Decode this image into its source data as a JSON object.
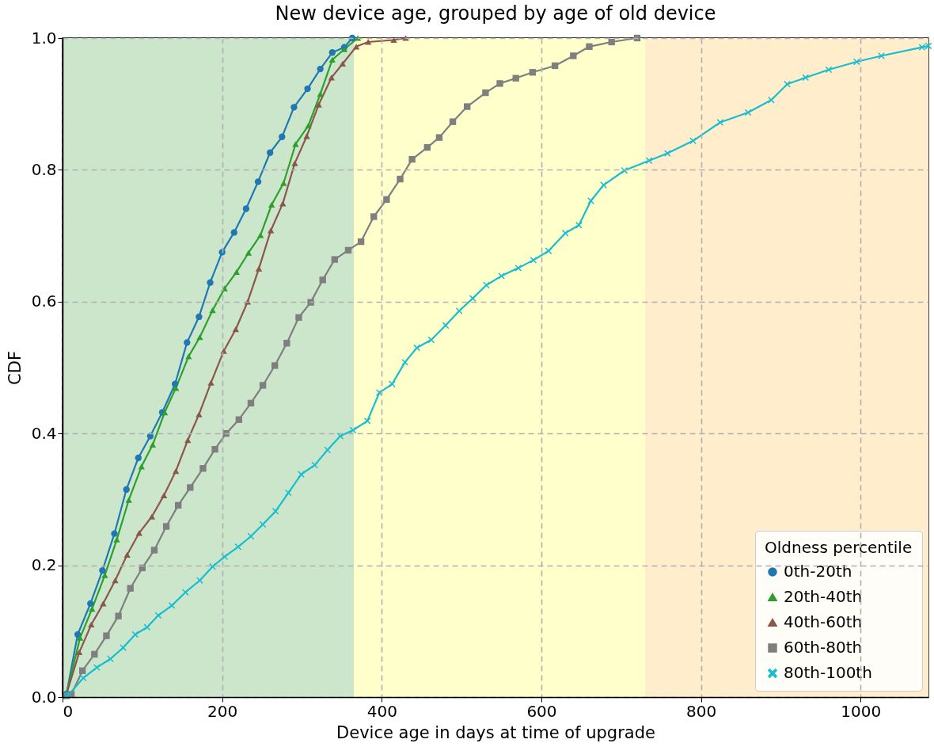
{
  "chart_data": {
    "type": "line",
    "title": "New device age, grouped by age of old device",
    "xlabel": "Device age in days at time of upgrade",
    "ylabel": "CDF",
    "legend_title": "Oldness percentile",
    "xlim": [
      0,
      1085
    ],
    "xticks": [
      0,
      200,
      400,
      600,
      800,
      1000
    ],
    "ylim": [
      0,
      1
    ],
    "yticks": [
      {
        "value": 0,
        "label": "0.0"
      },
      {
        "value": 0.2,
        "label": "0.2"
      },
      {
        "value": 0.4,
        "label": "0.4"
      },
      {
        "value": 0.6,
        "label": "0.6"
      },
      {
        "value": 0.8,
        "label": "0.8"
      },
      {
        "value": 1,
        "label": "1.0"
      }
    ],
    "grid": true,
    "legend": "bottom right",
    "bands": [
      {
        "axis": "x",
        "from": 0,
        "to": 365,
        "color": "#cce6cc"
      },
      {
        "axis": "x",
        "from": 365,
        "to": 730,
        "color": "#ffffcc"
      },
      {
        "axis": "x",
        "from": 730,
        "to": 1085,
        "color": "#ffedcc"
      }
    ],
    "series": [
      {
        "name": "0th-20th",
        "color": "#1f77b4",
        "marker": "circle",
        "x": [
          5,
          19,
          35,
          50,
          65,
          80,
          95,
          110,
          125,
          141,
          156,
          171,
          185,
          200,
          215,
          230,
          245,
          260,
          275,
          290,
          307,
          323,
          338,
          353,
          363
        ],
        "values": [
          0.005,
          0.095,
          0.142,
          0.192,
          0.248,
          0.315,
          0.363,
          0.396,
          0.432,
          0.475,
          0.538,
          0.577,
          0.629,
          0.675,
          0.705,
          0.741,
          0.782,
          0.826,
          0.85,
          0.895,
          0.923,
          0.953,
          0.978,
          0.986,
          1
        ]
      },
      {
        "name": "20th-40th",
        "color": "#2ca02c",
        "marker": "triangle",
        "x": [
          5,
          22,
          37,
          53,
          68,
          83,
          99,
          113,
          128,
          142,
          158,
          172,
          188,
          203,
          218,
          233,
          248,
          262,
          277,
          292,
          308,
          323,
          338,
          353,
          370
        ],
        "values": [
          0.005,
          0.09,
          0.134,
          0.185,
          0.239,
          0.299,
          0.35,
          0.383,
          0.432,
          0.469,
          0.517,
          0.546,
          0.587,
          0.62,
          0.645,
          0.674,
          0.701,
          0.747,
          0.78,
          0.839,
          0.867,
          0.915,
          0.967,
          0.983,
          1
        ]
      },
      {
        "name": "40th-60th",
        "color": "#8c564b",
        "marker": "triangle",
        "x": [
          5,
          21,
          36,
          51,
          66,
          81,
          96,
          112,
          127,
          142,
          157,
          171,
          186,
          202,
          217,
          232,
          246,
          261,
          276,
          291,
          306,
          321,
          337,
          351,
          368,
          383,
          415,
          430
        ],
        "values": [
          0.005,
          0.068,
          0.11,
          0.142,
          0.177,
          0.216,
          0.249,
          0.274,
          0.306,
          0.343,
          0.39,
          0.429,
          0.477,
          0.525,
          0.558,
          0.6,
          0.65,
          0.708,
          0.749,
          0.81,
          0.851,
          0.899,
          0.94,
          0.961,
          0.987,
          0.994,
          0.997,
          1
        ]
      },
      {
        "name": "60th-80th",
        "color": "#7f7f7f",
        "marker": "square",
        "x": [
          5,
          11,
          25,
          40,
          55,
          70,
          85,
          100,
          115,
          130,
          145,
          160,
          176,
          191,
          205,
          221,
          236,
          251,
          266,
          281,
          296,
          311,
          326,
          341,
          358,
          374,
          390,
          406,
          423,
          438,
          457,
          472,
          489,
          507,
          530,
          548,
          568,
          589,
          617,
          640,
          660,
          688,
          720
        ],
        "values": [
          0.002,
          0.004,
          0.04,
          0.065,
          0.093,
          0.123,
          0.165,
          0.196,
          0.223,
          0.259,
          0.291,
          0.318,
          0.347,
          0.376,
          0.4,
          0.421,
          0.446,
          0.473,
          0.503,
          0.537,
          0.576,
          0.599,
          0.633,
          0.664,
          0.678,
          0.691,
          0.729,
          0.755,
          0.786,
          0.816,
          0.834,
          0.849,
          0.873,
          0.896,
          0.917,
          0.931,
          0.939,
          0.948,
          0.958,
          0.973,
          0.987,
          0.994,
          1
        ]
      },
      {
        "name": "80th-100th",
        "color": "#17becf",
        "marker": "cross",
        "x": [
          5,
          8,
          26,
          43,
          60,
          76,
          91,
          106,
          120,
          137,
          154,
          172,
          188,
          203,
          220,
          236,
          251,
          267,
          283,
          299,
          316,
          332,
          348,
          364,
          382,
          397,
          413,
          429,
          444,
          462,
          480,
          497,
          514,
          531,
          550,
          571,
          590,
          609,
          630,
          647,
          662,
          678,
          704,
          735,
          758,
          790,
          824,
          859,
          888,
          908,
          931,
          960,
          995,
          1026,
          1077,
          1085
        ],
        "values": [
          0.002,
          0.004,
          0.029,
          0.045,
          0.058,
          0.075,
          0.095,
          0.106,
          0.124,
          0.139,
          0.159,
          0.177,
          0.198,
          0.213,
          0.228,
          0.244,
          0.262,
          0.282,
          0.31,
          0.338,
          0.352,
          0.375,
          0.396,
          0.405,
          0.419,
          0.462,
          0.475,
          0.508,
          0.53,
          0.542,
          0.564,
          0.586,
          0.605,
          0.625,
          0.639,
          0.651,
          0.663,
          0.677,
          0.704,
          0.716,
          0.753,
          0.777,
          0.799,
          0.814,
          0.825,
          0.844,
          0.872,
          0.887,
          0.906,
          0.93,
          0.94,
          0.952,
          0.964,
          0.973,
          0.986,
          0.988
        ]
      }
    ]
  }
}
